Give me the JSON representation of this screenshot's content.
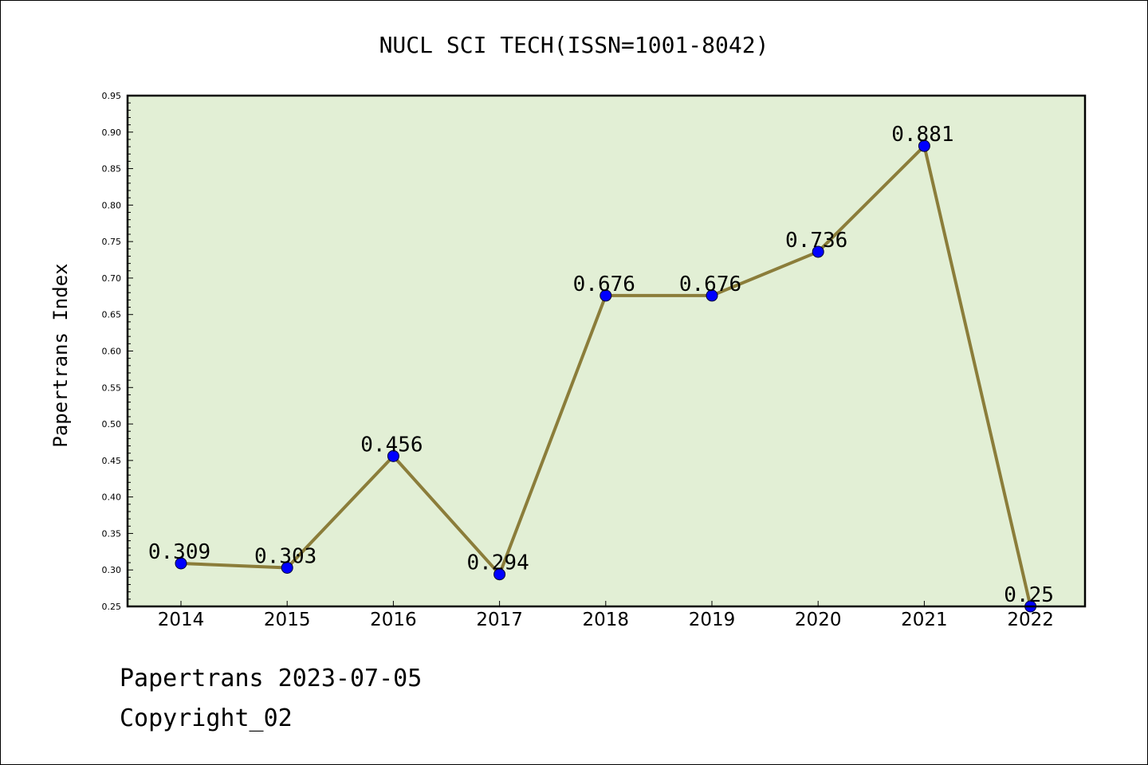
{
  "chart_data": {
    "type": "line",
    "title": "NUCL SCI TECH(ISSN=1001-8042)",
    "xlabel": "",
    "ylabel": "Papertrans Index",
    "categories": [
      "2014",
      "2015",
      "2016",
      "2017",
      "2018",
      "2019",
      "2020",
      "2021",
      "2022"
    ],
    "series": [
      {
        "name": "Papertrans Index",
        "values": [
          0.309,
          0.303,
          0.456,
          0.294,
          0.676,
          0.676,
          0.736,
          0.881,
          0.25
        ],
        "value_labels": [
          "0.309",
          "0.303",
          "0.456",
          "0.294",
          "0.676",
          "0.676",
          "0.736",
          "0.881",
          "0.25"
        ]
      }
    ],
    "ylim": [
      0.25,
      0.95
    ],
    "yticks": [
      0.25,
      0.3,
      0.35,
      0.4,
      0.45,
      0.5,
      0.55,
      0.6,
      0.65,
      0.7,
      0.75,
      0.8,
      0.85,
      0.9,
      0.95
    ],
    "ytick_labels": [
      "0.25",
      "0.30",
      "0.35",
      "0.40",
      "0.45",
      "0.50",
      "0.55",
      "0.60",
      "0.65",
      "0.70",
      "0.75",
      "0.80",
      "0.85",
      "0.90",
      "0.95"
    ],
    "grid": false,
    "legend": "none"
  },
  "colors": {
    "plot_background": "#e2efd5",
    "line": "#8b7d3a",
    "marker": "#0000ff",
    "axis": "#000000"
  },
  "footer": {
    "line1": "Papertrans 2023-07-05",
    "line2": "Copyright_02"
  }
}
